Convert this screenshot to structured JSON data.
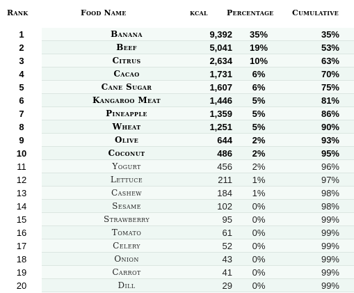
{
  "header": {
    "rank": "Rank",
    "food_name": "Food Name",
    "kcal": "kcal",
    "percentage": "Percentage",
    "cumulative": "Cumulative"
  },
  "rows": [
    {
      "rank": "1",
      "food": "Banana",
      "kcal": "9,392",
      "pct": "35%",
      "cum": "35%"
    },
    {
      "rank": "2",
      "food": "Beef",
      "kcal": "5,041",
      "pct": "19%",
      "cum": "53%"
    },
    {
      "rank": "3",
      "food": "Citrus",
      "kcal": "2,634",
      "pct": "10%",
      "cum": "63%"
    },
    {
      "rank": "4",
      "food": "Cacao",
      "kcal": "1,731",
      "pct": "6%",
      "cum": "70%"
    },
    {
      "rank": "5",
      "food": "Cane Sugar",
      "kcal": "1,607",
      "pct": "6%",
      "cum": "75%"
    },
    {
      "rank": "6",
      "food": "Kangaroo Meat",
      "kcal": "1,446",
      "pct": "5%",
      "cum": "81%"
    },
    {
      "rank": "7",
      "food": "Pineapple",
      "kcal": "1,359",
      "pct": "5%",
      "cum": "86%"
    },
    {
      "rank": "8",
      "food": "Wheat",
      "kcal": "1,251",
      "pct": "5%",
      "cum": "90%"
    },
    {
      "rank": "9",
      "food": "Olive",
      "kcal": "644",
      "pct": "2%",
      "cum": "93%"
    },
    {
      "rank": "10",
      "food": "Coconut",
      "kcal": "486",
      "pct": "2%",
      "cum": "95%"
    },
    {
      "rank": "11",
      "food": "Yogurt",
      "kcal": "456",
      "pct": "2%",
      "cum": "96%"
    },
    {
      "rank": "12",
      "food": "Lettuce",
      "kcal": "211",
      "pct": "1%",
      "cum": "97%"
    },
    {
      "rank": "13",
      "food": "Cashew",
      "kcal": "184",
      "pct": "1%",
      "cum": "98%"
    },
    {
      "rank": "14",
      "food": "Sesame",
      "kcal": "102",
      "pct": "0%",
      "cum": "98%"
    },
    {
      "rank": "15",
      "food": "Strawberry",
      "kcal": "95",
      "pct": "0%",
      "cum": "99%"
    },
    {
      "rank": "16",
      "food": "Tomato",
      "kcal": "61",
      "pct": "0%",
      "cum": "99%"
    },
    {
      "rank": "17",
      "food": "Celery",
      "kcal": "52",
      "pct": "0%",
      "cum": "99%"
    },
    {
      "rank": "18",
      "food": "Onion",
      "kcal": "43",
      "pct": "0%",
      "cum": "99%"
    },
    {
      "rank": "19",
      "food": "Carrot",
      "kcal": "41",
      "pct": "0%",
      "cum": "99%"
    },
    {
      "rank": "20",
      "food": "Dill",
      "kcal": "29",
      "pct": "0%",
      "cum": "99%"
    }
  ]
}
